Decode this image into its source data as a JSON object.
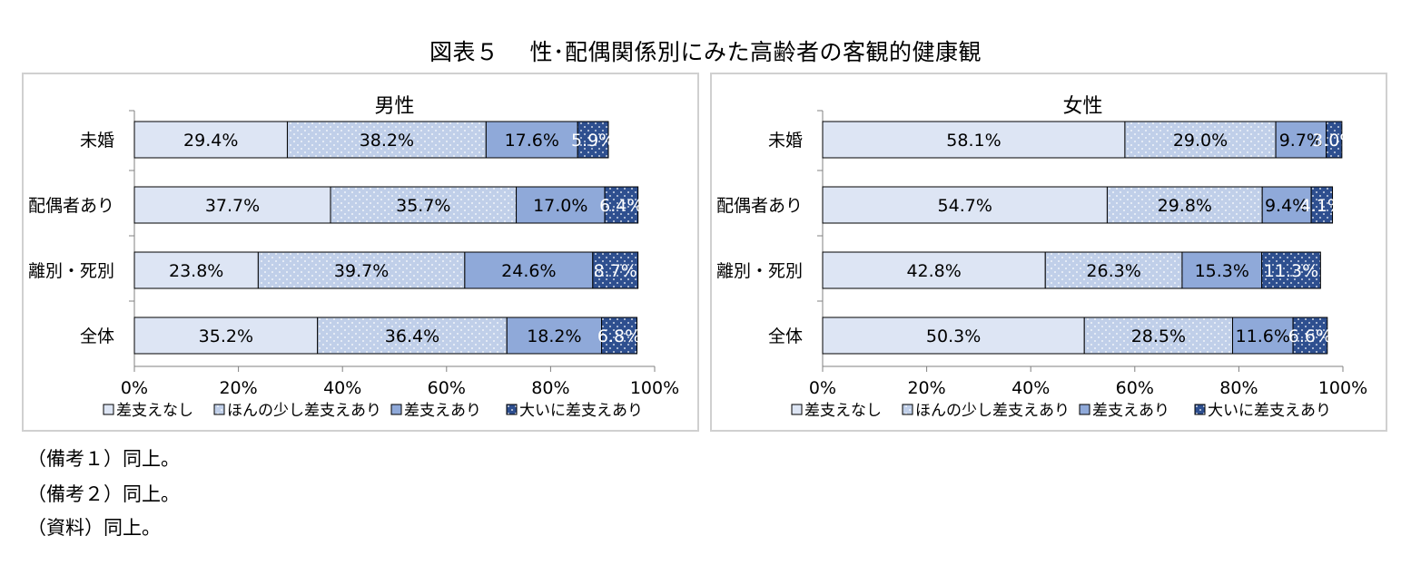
{
  "title": "図表５　 性･配偶関係別にみた高齢者の客観的健康観",
  "notes": [
    "（備考１）同上。",
    "（備考２）同上。",
    "（資料）同上。"
  ],
  "colors": {
    "none": "#dde5f4",
    "little": "#c0cfe9",
    "some": "#8fa9d9",
    "great": "#2e4f8f",
    "border": "#000000",
    "grid": "#d9d9d9",
    "frame": "#d0d0d0"
  },
  "chart_data": [
    {
      "type": "bar",
      "orientation": "horizontal",
      "stacked": "percent",
      "title": "男性",
      "categories": [
        "未婚",
        "配偶者あり",
        "離別・死別",
        "全体"
      ],
      "series": [
        {
          "name": "差支えなし",
          "values": [
            29.4,
            37.7,
            23.8,
            35.2
          ],
          "labels": [
            "29.4%",
            "37.7%",
            "23.8%",
            "35.2%"
          ]
        },
        {
          "name": "ほんの少し差支えあり",
          "values": [
            38.2,
            35.7,
            39.7,
            36.4
          ],
          "labels": [
            "38.2%",
            "35.7%",
            "39.7%",
            "36.4%"
          ]
        },
        {
          "name": "差支えあり",
          "values": [
            17.6,
            17.0,
            24.6,
            18.2
          ],
          "labels": [
            "17.6%",
            "17.0%",
            "24.6%",
            "18.2%"
          ]
        },
        {
          "name": "大いに差支えあり",
          "values": [
            5.9,
            6.4,
            8.7,
            6.8
          ],
          "labels": [
            "5.9%",
            "6.4%",
            "8.7%",
            "6.8%"
          ]
        }
      ],
      "xticks": [
        "0%",
        "20%",
        "40%",
        "60%",
        "80%",
        "100%"
      ],
      "xlim": [
        0,
        100
      ],
      "legend": "bottom"
    },
    {
      "type": "bar",
      "orientation": "horizontal",
      "stacked": "percent",
      "title": "女性",
      "categories": [
        "未婚",
        "配偶者あり",
        "離別・死別",
        "全体"
      ],
      "series": [
        {
          "name": "差支えなし",
          "values": [
            58.1,
            54.7,
            42.8,
            50.3
          ],
          "labels": [
            "58.1%",
            "54.7%",
            "42.8%",
            "50.3%"
          ]
        },
        {
          "name": "ほんの少し差支えあり",
          "values": [
            29.0,
            29.8,
            26.3,
            28.5
          ],
          "labels": [
            "29.0%",
            "29.8%",
            "26.3%",
            "28.5%"
          ]
        },
        {
          "name": "差支えあり",
          "values": [
            9.7,
            9.4,
            15.3,
            11.6
          ],
          "labels": [
            "9.7%",
            "9.4%",
            "15.3%",
            "11.6%"
          ]
        },
        {
          "name": "大いに差支えあり",
          "values": [
            3.0,
            4.1,
            11.3,
            6.6
          ],
          "labels": [
            "3.0%",
            "4.1%",
            "11.3%",
            "6.6%"
          ]
        }
      ],
      "xticks": [
        "0%",
        "20%",
        "40%",
        "60%",
        "80%",
        "100%"
      ],
      "xlim": [
        0,
        100
      ],
      "legend": "bottom"
    }
  ]
}
